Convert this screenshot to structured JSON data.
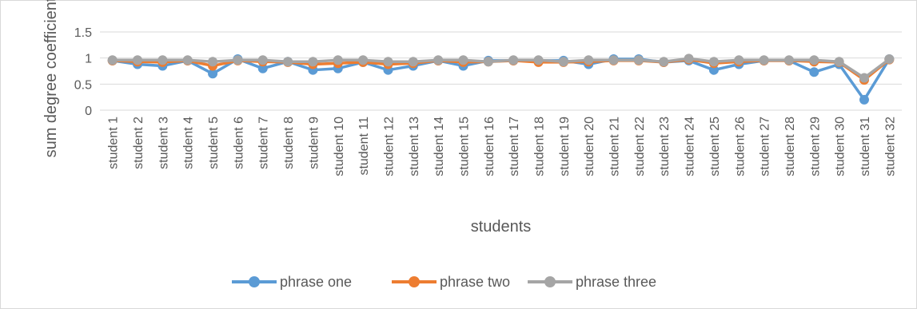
{
  "chart_data": {
    "type": "line",
    "title": "",
    "xlabel": "students",
    "ylabel": "sum degree coefficients",
    "ylim": [
      0,
      1.5
    ],
    "yticks": [
      "0",
      "0.5",
      "1",
      "1.5"
    ],
    "grid": "horizontal",
    "legend": "bottom",
    "categories": [
      "student 1",
      "student 2",
      "student 3",
      "student 4",
      "student 5",
      "student 6",
      "student 7",
      "student 8",
      "student 9",
      "student 10",
      "student 11",
      "student 12",
      "student 13",
      "student 14",
      "student 15",
      "student 16",
      "student 17",
      "student 18",
      "student 19",
      "student 20",
      "student 21",
      "student 22",
      "student 23",
      "student 24",
      "student 25",
      "student 26",
      "student 27",
      "student 28",
      "student 29",
      "student 30",
      "student 31",
      "student 32"
    ],
    "series": [
      {
        "name": "phrase one",
        "color": "#5b9bd5",
        "values": [
          0.95,
          0.88,
          0.85,
          0.95,
          0.7,
          0.98,
          0.8,
          0.93,
          0.77,
          0.8,
          0.92,
          0.77,
          0.85,
          0.95,
          0.85,
          0.95,
          0.95,
          0.95,
          0.95,
          0.88,
          0.98,
          0.98,
          0.92,
          0.95,
          0.77,
          0.88,
          0.95,
          0.95,
          0.73,
          0.88,
          0.2,
          0.98
        ]
      },
      {
        "name": "phrase two",
        "color": "#ed7d31",
        "values": [
          0.95,
          0.93,
          0.92,
          0.95,
          0.85,
          0.95,
          0.93,
          0.92,
          0.88,
          0.9,
          0.92,
          0.88,
          0.9,
          0.95,
          0.92,
          0.93,
          0.95,
          0.92,
          0.92,
          0.93,
          0.95,
          0.95,
          0.92,
          0.97,
          0.9,
          0.93,
          0.95,
          0.95,
          0.93,
          0.92,
          0.58,
          0.97
        ]
      },
      {
        "name": "phrase three",
        "color": "#a5a5a5",
        "values": [
          0.96,
          0.96,
          0.96,
          0.96,
          0.93,
          0.96,
          0.96,
          0.93,
          0.93,
          0.96,
          0.96,
          0.93,
          0.93,
          0.96,
          0.96,
          0.93,
          0.96,
          0.96,
          0.93,
          0.96,
          0.96,
          0.96,
          0.93,
          0.99,
          0.93,
          0.96,
          0.96,
          0.96,
          0.96,
          0.93,
          0.62,
          0.98
        ]
      }
    ]
  }
}
